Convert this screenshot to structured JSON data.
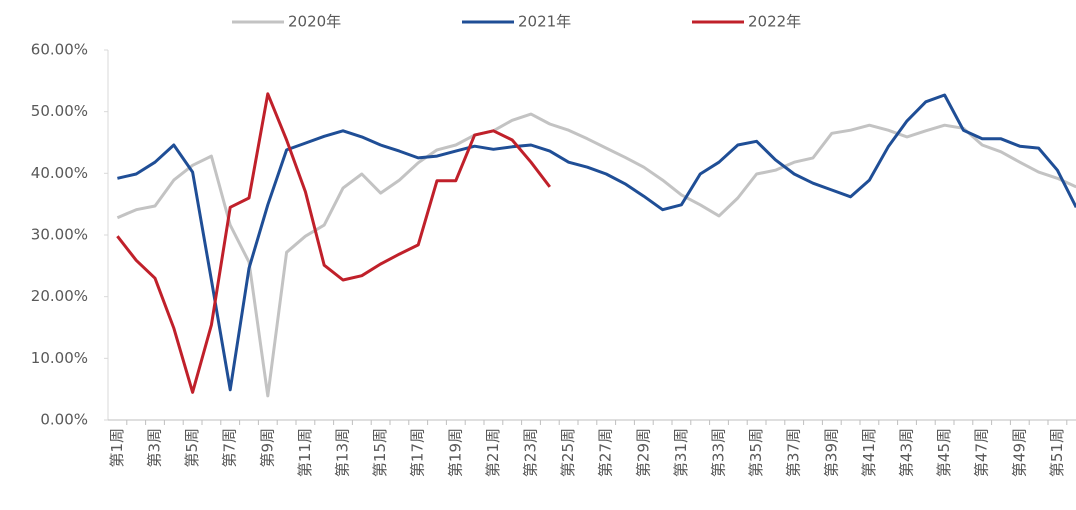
{
  "chart_data": {
    "type": "line",
    "categories": [
      "第1周",
      null,
      "第3周",
      null,
      "第5周",
      null,
      "第7周",
      null,
      "第9周",
      null,
      "第11周",
      null,
      "第13周",
      null,
      "第15周",
      null,
      "第17周",
      null,
      "第19周",
      null,
      "第21周",
      null,
      "第23周",
      null,
      "第25周",
      null,
      "第27周",
      null,
      "第29周",
      null,
      "第31周",
      null,
      "第33周",
      null,
      "第35周",
      null,
      "第37周",
      null,
      "第39周",
      null,
      "第41周",
      null,
      "第43周",
      null,
      "第45周",
      null,
      "第47周",
      null,
      "第49周",
      null,
      "第51周",
      null
    ],
    "series": [
      {
        "name": "2020年",
        "color": "#c3c3c3",
        "values": [
          32.8,
          34.1,
          34.7,
          38.9,
          41.3,
          42.8,
          31.6,
          25.6,
          3.9,
          27.2,
          29.8,
          31.6,
          37.6,
          39.9,
          36.8,
          38.9,
          41.7,
          43.8,
          44.6,
          46.2,
          46.9,
          48.6,
          49.6,
          48.0,
          47.0,
          45.6,
          44.1,
          42.6,
          41.0,
          38.9,
          36.5,
          34.9,
          33.1,
          36.0,
          39.9,
          40.5,
          41.8,
          42.5,
          46.5,
          47.0,
          47.8,
          47.0,
          45.9,
          46.9,
          47.8,
          47.3,
          44.6,
          43.5,
          41.8,
          40.2,
          39.2,
          37.8
        ]
      },
      {
        "name": "2021年",
        "color": "#1f4e96",
        "values": [
          39.2,
          39.9,
          41.8,
          44.6,
          40.2,
          22.7,
          4.9,
          24.6,
          34.9,
          43.8,
          44.9,
          46.0,
          46.9,
          45.9,
          44.6,
          43.6,
          42.5,
          42.8,
          43.6,
          44.4,
          43.9,
          44.3,
          44.6,
          43.6,
          41.8,
          41.0,
          39.9,
          38.3,
          36.3,
          34.1,
          34.9,
          39.9,
          41.8,
          44.6,
          45.2,
          42.2,
          39.9,
          38.4,
          37.3,
          36.2,
          38.9,
          44.3,
          48.5,
          51.6,
          52.7,
          47.0,
          45.6,
          45.6,
          44.4,
          44.1,
          40.5,
          34.5
        ]
      },
      {
        "name": "2022年",
        "color": "#c0202a",
        "values": [
          29.8,
          25.9,
          23.0,
          14.9,
          4.5,
          15.4,
          34.5,
          36.0,
          52.9,
          45.4,
          37.0,
          25.1,
          22.7,
          23.4,
          25.3,
          26.9,
          28.4,
          38.8,
          38.8,
          46.2,
          46.9,
          45.4,
          41.8,
          37.8,
          null,
          null,
          null,
          null,
          null,
          null,
          null,
          null,
          null,
          null,
          null,
          null,
          null,
          null,
          null,
          null,
          null,
          null,
          null,
          null,
          null,
          null,
          null,
          null,
          null,
          null,
          null,
          null
        ]
      }
    ],
    "ylim": [
      0,
      60
    ],
    "yticks": [
      {
        "value": 0,
        "label": "0.00%"
      },
      {
        "value": 10,
        "label": "10.00%"
      },
      {
        "value": 20,
        "label": "20.00%"
      },
      {
        "value": 30,
        "label": "30.00%"
      },
      {
        "value": 40,
        "label": "40.00%"
      },
      {
        "value": 50,
        "label": "50.00%"
      },
      {
        "value": 60,
        "label": "60.00%"
      }
    ],
    "grid": false,
    "legend": "top"
  }
}
